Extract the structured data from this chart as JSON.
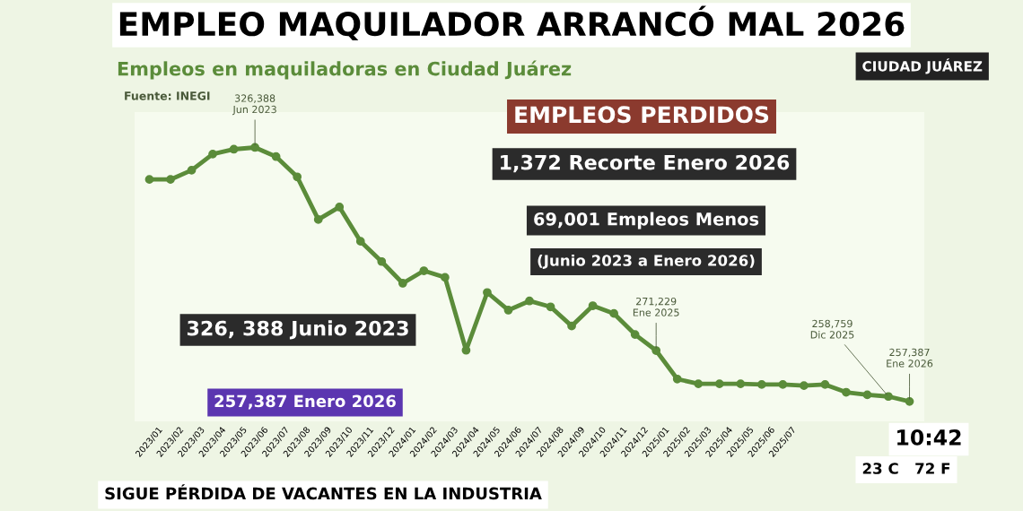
{
  "chart_data": {
    "type": "line",
    "title": "EMPLEO MAQUILADOR ARRANCÓ MAL 2026",
    "subtitle": "Empleos en maquiladoras en Ciudad Juárez",
    "categories": [
      "2023/01",
      "2023/02",
      "2023/03",
      "2023/04",
      "2023/05",
      "2023/06",
      "2023/07",
      "2023/08",
      "2023/09",
      "2023/10",
      "2023/11",
      "2023/12",
      "2024/01",
      "2024/02",
      "2024/03",
      "2024/04",
      "2024/05",
      "2024/06",
      "2024/07",
      "2024/08",
      "2024/09",
      "2024/10",
      "2024/11",
      "2024/12",
      "2025/01",
      "2025/02",
      "2025/03",
      "2025/04",
      "2025/05",
      "2025/06",
      "2025/07",
      null,
      null,
      null,
      null,
      null,
      null
    ],
    "series": [
      {
        "color": "#5b8c3a",
        "values": [
          317700,
          317700,
          320200,
          324600,
          325900,
          326388,
          323900,
          318400,
          306800,
          310200,
          300900,
          295400,
          289500,
          292900,
          291100,
          271300,
          287000,
          282200,
          284700,
          283100,
          277900,
          283400,
          281300,
          275600,
          271229,
          263500,
          262200,
          262200,
          262200,
          262000,
          262000,
          261700,
          262000,
          259900,
          259200,
          258759,
          257387
        ],
        "value_labels": [
          null,
          null,
          null,
          null,
          null,
          "326,388\nJun 2023",
          null,
          null,
          null,
          null,
          null,
          null,
          null,
          null,
          null,
          null,
          null,
          null,
          null,
          null,
          null,
          null,
          null,
          null,
          "271,229\nEne 2025",
          null,
          null,
          null,
          null,
          null,
          null,
          null,
          null,
          null,
          null,
          "258,759\nDic 2025",
          "257,387\nEne 2026"
        ]
      }
    ],
    "ylim": [
      252000,
      336000
    ],
    "tick_labels": "x",
    "marker": "circle",
    "line_style": "solid",
    "annotations": [
      "Fuente: INEGI",
      "CIUDAD JUÁREZ",
      "EMPLEOS PERDIDOS",
      "1,372 Recorte Enero 2026",
      "69,001 Empleos Menos",
      "(Junio 2023 a Enero 2026)",
      "326, 388 Junio 2023",
      "257,387 Enero 2026",
      "SIGUE PÉRDIDA DE VACANTES EN LA INDUSTRIA",
      "10:42",
      "23 C   72 F"
    ]
  }
}
